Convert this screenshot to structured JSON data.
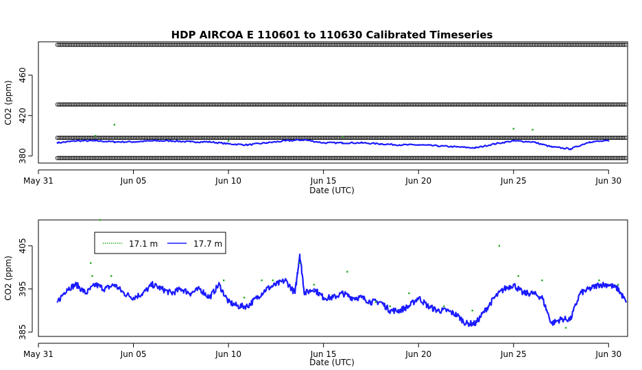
{
  "chart_data": [
    {
      "type": "scatter",
      "title": "HDP   AIRCOA  E   110601  to  110630   Calibrated Timeseries",
      "xlabel": "Date (UTC)",
      "ylabel": "CO2 (ppm)",
      "xlim": [
        "2011-05-31",
        "2011-07-01"
      ],
      "ylim": [
        373,
        493
      ],
      "x_ticks": [
        {
          "date": "2011-05-31",
          "label": "May 31"
        },
        {
          "date": "2011-06-05",
          "label": "Jun 05"
        },
        {
          "date": "2011-06-10",
          "label": "Jun 10"
        },
        {
          "date": "2011-06-15",
          "label": "Jun 15"
        },
        {
          "date": "2011-06-20",
          "label": "Jun 20"
        },
        {
          "date": "2011-06-25",
          "label": "Jun 25"
        },
        {
          "date": "2011-06-30",
          "label": "Jun 30"
        }
      ],
      "y_ticks": [
        {
          "value": 380,
          "label": "380"
        },
        {
          "value": 420,
          "label": "420"
        },
        {
          "value": 460,
          "label": "460"
        }
      ],
      "reference_levels": {
        "marker": "open-circle",
        "color": "#000000",
        "x_start": "2011-06-01",
        "x_end": "2011-06-30",
        "values": [
          378,
          398,
          431,
          490
        ]
      },
      "series": [
        {
          "color": "#1a1aff",
          "x": [
            "2011-06-01",
            "2011-06-02",
            "2011-06-03",
            "2011-06-04",
            "2011-06-05",
            "2011-06-06",
            "2011-06-07",
            "2011-06-08",
            "2011-06-09",
            "2011-06-10",
            "2011-06-11",
            "2011-06-12",
            "2011-06-13",
            "2011-06-14",
            "2011-06-15",
            "2011-06-16",
            "2011-06-17",
            "2011-06-18",
            "2011-06-19",
            "2011-06-20",
            "2011-06-21",
            "2011-06-22",
            "2011-06-23",
            "2011-06-24",
            "2011-06-25",
            "2011-06-26",
            "2011-06-27",
            "2011-06-28",
            "2011-06-29",
            "2011-06-30"
          ],
          "y": [
            393,
            395,
            395,
            394,
            394,
            395,
            395,
            394,
            394,
            392,
            391,
            393,
            395,
            396,
            393,
            393,
            393,
            392,
            391,
            391,
            390,
            389,
            388,
            392,
            395,
            394,
            389,
            387,
            394,
            395
          ]
        },
        {
          "color": "#22aa22",
          "x": [
            "2011-06-03",
            "2011-06-04",
            "2011-06-10",
            "2011-06-16",
            "2011-06-25",
            "2011-06-26"
          ],
          "y": [
            400,
            411,
            395,
            399,
            407,
            406
          ]
        }
      ]
    },
    {
      "type": "line",
      "title": "",
      "xlabel": "Date (UTC)",
      "ylabel": "CO2 (ppm)",
      "xlim": [
        "2011-05-31",
        "2011-07-01"
      ],
      "ylim": [
        384,
        411
      ],
      "x_ticks": [
        {
          "date": "2011-05-31",
          "label": "May 31"
        },
        {
          "date": "2011-06-05",
          "label": "Jun 05"
        },
        {
          "date": "2011-06-10",
          "label": "Jun 10"
        },
        {
          "date": "2011-06-15",
          "label": "Jun 15"
        },
        {
          "date": "2011-06-20",
          "label": "Jun 20"
        },
        {
          "date": "2011-06-25",
          "label": "Jun 25"
        },
        {
          "date": "2011-06-30",
          "label": "Jun 30"
        }
      ],
      "y_ticks": [
        {
          "value": 385,
          "label": "385"
        },
        {
          "value": 395,
          "label": "395"
        },
        {
          "value": 405,
          "label": "405"
        }
      ],
      "legend": {
        "placement": "top-left",
        "entries": [
          {
            "label": "17.1 m",
            "color": "#22aa22"
          },
          {
            "label": "17.7 m",
            "color": "#1a1aff"
          }
        ]
      },
      "series": [
        {
          "name": "17.7 m",
          "color": "#1a1aff",
          "x": [
            "2011-06-01T00:00",
            "2011-06-01T12:00",
            "2011-06-02T00:00",
            "2011-06-02T12:00",
            "2011-06-03T00:00",
            "2011-06-03T12:00",
            "2011-06-04T00:00",
            "2011-06-04T12:00",
            "2011-06-05T00:00",
            "2011-06-05T12:00",
            "2011-06-06T00:00",
            "2011-06-06T12:00",
            "2011-06-07T00:00",
            "2011-06-07T12:00",
            "2011-06-08T00:00",
            "2011-06-08T12:00",
            "2011-06-09T00:00",
            "2011-06-09T12:00",
            "2011-06-10T00:00",
            "2011-06-10T12:00",
            "2011-06-11T00:00",
            "2011-06-11T12:00",
            "2011-06-12T00:00",
            "2011-06-12T12:00",
            "2011-06-13T00:00",
            "2011-06-13T12:00",
            "2011-06-13T18:00",
            "2011-06-14T00:00",
            "2011-06-14T12:00",
            "2011-06-15T00:00",
            "2011-06-15T12:00",
            "2011-06-16T00:00",
            "2011-06-16T12:00",
            "2011-06-17T00:00",
            "2011-06-17T12:00",
            "2011-06-18T00:00",
            "2011-06-18T12:00",
            "2011-06-19T00:00",
            "2011-06-19T12:00",
            "2011-06-20T00:00",
            "2011-06-20T12:00",
            "2011-06-21T00:00",
            "2011-06-21T12:00",
            "2011-06-22T00:00",
            "2011-06-22T12:00",
            "2011-06-23T00:00",
            "2011-06-23T12:00",
            "2011-06-24T00:00",
            "2011-06-24T12:00",
            "2011-06-25T00:00",
            "2011-06-25T12:00",
            "2011-06-26T00:00",
            "2011-06-26T12:00",
            "2011-06-27T00:00",
            "2011-06-27T12:00",
            "2011-06-28T00:00",
            "2011-06-28T12:00",
            "2011-06-29T00:00",
            "2011-06-29T12:00",
            "2011-06-30T00:00",
            "2011-06-30T12:00",
            "2011-06-30T22:00"
          ],
          "y": [
            392,
            395,
            396,
            394,
            396,
            395,
            396,
            394,
            393,
            394,
            396,
            395,
            394,
            395,
            394,
            395,
            393,
            396,
            392,
            391,
            391,
            393,
            395,
            396,
            397,
            394,
            403,
            394,
            395,
            393,
            393,
            394,
            393,
            393,
            392,
            392,
            390,
            390,
            391,
            393,
            391,
            390,
            390,
            389,
            387,
            387,
            390,
            393,
            395,
            396,
            394,
            394,
            393,
            387,
            388,
            388,
            394,
            395,
            396,
            396,
            395,
            392
          ]
        },
        {
          "name": "17.1 m",
          "color": "#22aa22",
          "x": [
            "2011-06-02T18:00",
            "2011-06-02T20:00",
            "2011-06-03T06:00",
            "2011-06-03T20:00",
            "2011-06-09T18:00",
            "2011-06-10T20:00",
            "2011-06-11T18:00",
            "2011-06-12T08:00",
            "2011-06-13T18:00",
            "2011-06-14T12:00",
            "2011-06-16T06:00",
            "2011-06-17T18:00",
            "2011-06-18T12:00",
            "2011-06-19T12:00",
            "2011-06-21T08:00",
            "2011-06-22T20:00",
            "2011-06-24T06:00",
            "2011-06-25T06:00",
            "2011-06-26T12:00",
            "2011-06-27T18:00",
            "2011-06-29T12:00",
            "2011-06-30T12:00"
          ],
          "y": [
            401,
            398,
            411,
            398,
            397,
            393,
            397,
            397,
            401,
            396,
            399,
            392,
            391,
            394,
            391,
            390,
            405,
            398,
            397,
            386,
            397,
            396
          ]
        }
      ]
    }
  ]
}
